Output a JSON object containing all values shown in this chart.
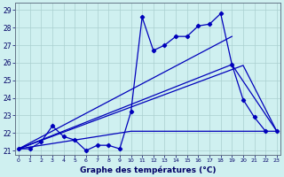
{
  "xlabel": "Graphe des températures (°C)",
  "background_color": "#cff0f0",
  "grid_color": "#aacfcf",
  "line_color": "#0000bb",
  "xlim": [
    -0.3,
    23.3
  ],
  "ylim": [
    20.75,
    29.4
  ],
  "yticks": [
    21,
    22,
    23,
    24,
    25,
    26,
    27,
    28,
    29
  ],
  "xticks": [
    0,
    1,
    2,
    3,
    4,
    5,
    6,
    7,
    8,
    9,
    10,
    11,
    12,
    13,
    14,
    15,
    16,
    17,
    18,
    19,
    20,
    21,
    22,
    23
  ],
  "data_x": [
    0,
    1,
    2,
    3,
    4,
    5,
    6,
    7,
    8,
    9,
    10,
    11,
    12,
    13,
    14,
    15,
    16,
    17,
    18,
    19,
    20,
    21,
    22,
    23
  ],
  "data_y": [
    21.1,
    21.1,
    21.5,
    22.4,
    21.8,
    21.6,
    21.0,
    21.3,
    21.3,
    21.1,
    23.2,
    28.6,
    26.7,
    27.0,
    27.5,
    27.5,
    28.1,
    28.2,
    28.8,
    25.9,
    23.9,
    22.9,
    22.1,
    22.1
  ],
  "line1_x": [
    0,
    19,
    23
  ],
  "line1_y": [
    21.1,
    25.9,
    22.1
  ],
  "line2_x": [
    0,
    20,
    23
  ],
  "line2_y": [
    21.1,
    25.85,
    22.1
  ],
  "line3_x": [
    0,
    19
  ],
  "line3_y": [
    21.1,
    27.5
  ],
  "line4_x": [
    0,
    10,
    22
  ],
  "line4_y": [
    21.1,
    22.1,
    22.1
  ],
  "figsize": [
    3.2,
    2.0
  ],
  "dpi": 100
}
